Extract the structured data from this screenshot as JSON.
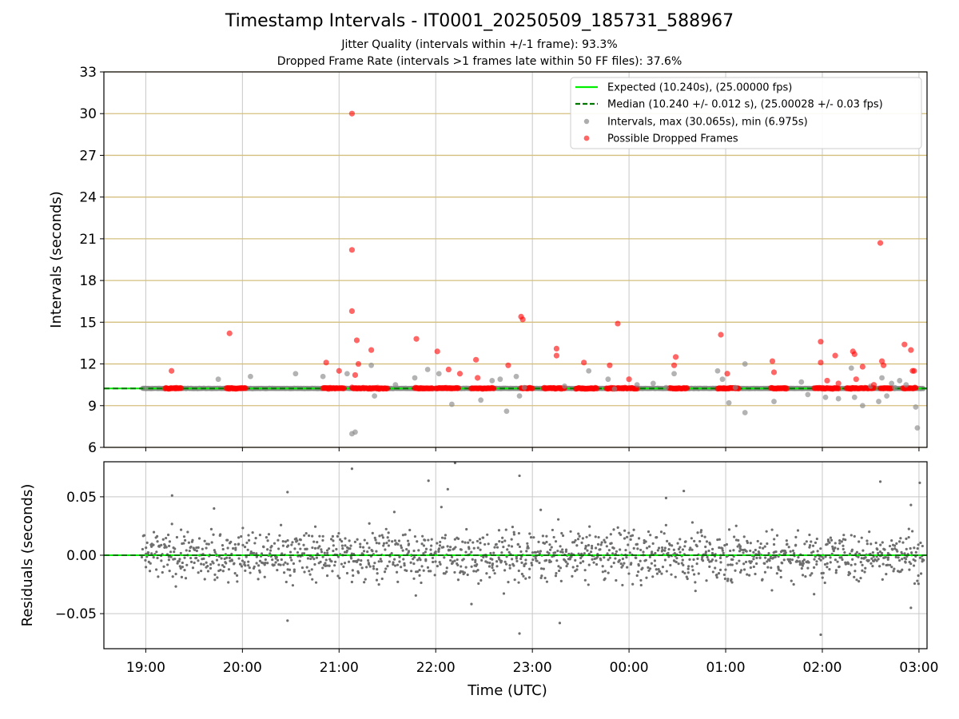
{
  "chart_data": [
    {
      "type": "scatter",
      "panel": "intervals",
      "title": "Timestamp Intervals - IT0001_20250509_185731_588967",
      "subtitle_lines": [
        "Jitter Quality (intervals within +/-1 frame): 93.3%",
        "Dropped Frame Rate (intervals >1 frames late within 50 FF files): 37.6%"
      ],
      "xlabel": "",
      "ylabel": "Intervals (seconds)",
      "xlim": [
        "18:34",
        "03:05"
      ],
      "ylim": [
        6,
        33
      ],
      "yticks": [
        6,
        9,
        12,
        15,
        18,
        21,
        24,
        27,
        30,
        33
      ],
      "grid": "on",
      "legend": "top-right",
      "expected_interval": 10.24,
      "median_interval": 10.24,
      "series": [
        {
          "name": "Expected (10.240s), (25.00000 fps)",
          "kind": "line",
          "color": "#00ee00",
          "y": 10.24
        },
        {
          "name": "Median (10.240 +/- 0.012 s), (25.00028 +/- 0.03 fps)",
          "kind": "dashed-line",
          "color": "#007700",
          "y": 10.24
        },
        {
          "name": "Intervals, max (30.065s), min (6.975s)",
          "kind": "scatter",
          "color": "#7f7f7f",
          "points": [
            [
              "19:00",
              10.24
            ],
            [
              "19:45",
              10.9
            ],
            [
              "20:05",
              11.1
            ],
            [
              "20:33",
              11.3
            ],
            [
              "20:50",
              11.1
            ],
            [
              "21:05",
              11.3
            ],
            [
              "21:08",
              6.98
            ],
            [
              "21:10",
              7.1
            ],
            [
              "21:20",
              11.9
            ],
            [
              "21:22",
              9.7
            ],
            [
              "21:35",
              10.5
            ],
            [
              "21:47",
              11.0
            ],
            [
              "21:55",
              11.6
            ],
            [
              "22:02",
              11.3
            ],
            [
              "22:10",
              9.1
            ],
            [
              "22:28",
              9.4
            ],
            [
              "22:35",
              10.8
            ],
            [
              "22:40",
              10.9
            ],
            [
              "22:44",
              8.6
            ],
            [
              "22:50",
              11.1
            ],
            [
              "22:52",
              9.7
            ],
            [
              "22:55",
              10.3
            ],
            [
              "23:20",
              10.4
            ],
            [
              "23:35",
              11.5
            ],
            [
              "23:47",
              10.9
            ],
            [
              "23:51",
              10.2
            ],
            [
              "00:05",
              10.5
            ],
            [
              "00:15",
              10.6
            ],
            [
              "00:23",
              10.3
            ],
            [
              "00:28",
              11.3
            ],
            [
              "00:55",
              11.5
            ],
            [
              "00:58",
              10.9
            ],
            [
              "01:02",
              9.2
            ],
            [
              "01:06",
              10.3
            ],
            [
              "01:12",
              12.0
            ],
            [
              "01:12",
              8.5
            ],
            [
              "01:30",
              9.3
            ],
            [
              "01:47",
              10.7
            ],
            [
              "01:51",
              9.8
            ],
            [
              "02:02",
              9.6
            ],
            [
              "02:10",
              9.5
            ],
            [
              "02:18",
              11.7
            ],
            [
              "02:20",
              9.6
            ],
            [
              "02:25",
              9.0
            ],
            [
              "02:30",
              10.4
            ],
            [
              "02:35",
              9.3
            ],
            [
              "02:37",
              11.0
            ],
            [
              "02:40",
              9.7
            ],
            [
              "02:43",
              10.6
            ],
            [
              "02:45",
              10.3
            ],
            [
              "02:48",
              10.8
            ],
            [
              "02:52",
              10.5
            ],
            [
              "02:58",
              8.9
            ],
            [
              "02:59",
              7.4
            ]
          ]
        },
        {
          "name": "Possible Dropped Frames",
          "kind": "scatter",
          "color": "#ff0000",
          "points": [
            [
              "19:16",
              11.5
            ],
            [
              "19:52",
              14.2
            ],
            [
              "20:52",
              12.1
            ],
            [
              "21:00",
              11.5
            ],
            [
              "21:08",
              30.0
            ],
            [
              "21:08",
              20.2
            ],
            [
              "21:08",
              15.8
            ],
            [
              "21:10",
              11.2
            ],
            [
              "21:11",
              13.7
            ],
            [
              "21:12",
              12.0
            ],
            [
              "21:20",
              13.0
            ],
            [
              "21:48",
              13.8
            ],
            [
              "22:01",
              12.9
            ],
            [
              "22:08",
              11.6
            ],
            [
              "22:15",
              11.3
            ],
            [
              "22:25",
              12.3
            ],
            [
              "22:26",
              11.0
            ],
            [
              "22:45",
              11.9
            ],
            [
              "22:53",
              15.4
            ],
            [
              "22:54",
              15.2
            ],
            [
              "23:15",
              13.1
            ],
            [
              "23:15",
              12.6
            ],
            [
              "23:32",
              12.1
            ],
            [
              "23:48",
              11.9
            ],
            [
              "23:53",
              14.9
            ],
            [
              "00:00",
              10.9
            ],
            [
              "00:28",
              11.9
            ],
            [
              "00:29",
              12.5
            ],
            [
              "00:57",
              14.1
            ],
            [
              "01:01",
              11.3
            ],
            [
              "01:29",
              12.2
            ],
            [
              "01:30",
              11.4
            ],
            [
              "01:59",
              13.6
            ],
            [
              "01:59",
              12.1
            ],
            [
              "02:03",
              10.8
            ],
            [
              "02:08",
              12.6
            ],
            [
              "02:10",
              10.6
            ],
            [
              "02:19",
              12.9
            ],
            [
              "02:20",
              12.7
            ],
            [
              "02:21",
              10.9
            ],
            [
              "02:25",
              11.8
            ],
            [
              "02:32",
              10.5
            ],
            [
              "02:36",
              20.7
            ],
            [
              "02:37",
              12.2
            ],
            [
              "02:38",
              11.9
            ],
            [
              "02:51",
              13.4
            ],
            [
              "02:55",
              13.0
            ],
            [
              "02:56",
              11.5
            ],
            [
              "02:57",
              11.5
            ]
          ]
        }
      ]
    },
    {
      "type": "scatter",
      "panel": "residuals",
      "xlabel": "Time (UTC)",
      "ylabel": "Residuals (seconds)",
      "xticks": [
        "19:00",
        "20:00",
        "21:00",
        "22:00",
        "23:00",
        "00:00",
        "01:00",
        "02:00",
        "03:00"
      ],
      "yticks": [
        -0.05,
        0.0,
        0.05
      ],
      "ytick_labels": [
        "−0.05",
        "0.00",
        "0.05"
      ],
      "ylim": [
        -0.08,
        0.08
      ],
      "grid": "on",
      "series": [
        {
          "kind": "line",
          "color": "#00ee00",
          "y": 0.0
        },
        {
          "kind": "dashed-line",
          "color": "#007700",
          "y": 0.0
        },
        {
          "kind": "scatter",
          "color": "#6e6e6e",
          "outliers": [
            [
              "20:28",
              0.054
            ],
            [
              "20:28",
              -0.056
            ],
            [
              "21:08",
              0.074
            ],
            [
              "22:12",
              0.079
            ],
            [
              "22:52",
              -0.067
            ],
            [
              "22:52",
              0.068
            ],
            [
              "23:17",
              -0.058
            ],
            [
              "00:23",
              0.049
            ],
            [
              "00:34",
              0.055
            ],
            [
              "01:59",
              -0.068
            ],
            [
              "02:36",
              0.063
            ],
            [
              "02:55",
              0.043
            ],
            [
              "02:55",
              -0.045
            ]
          ],
          "typical_spread": 0.012
        }
      ]
    }
  ]
}
